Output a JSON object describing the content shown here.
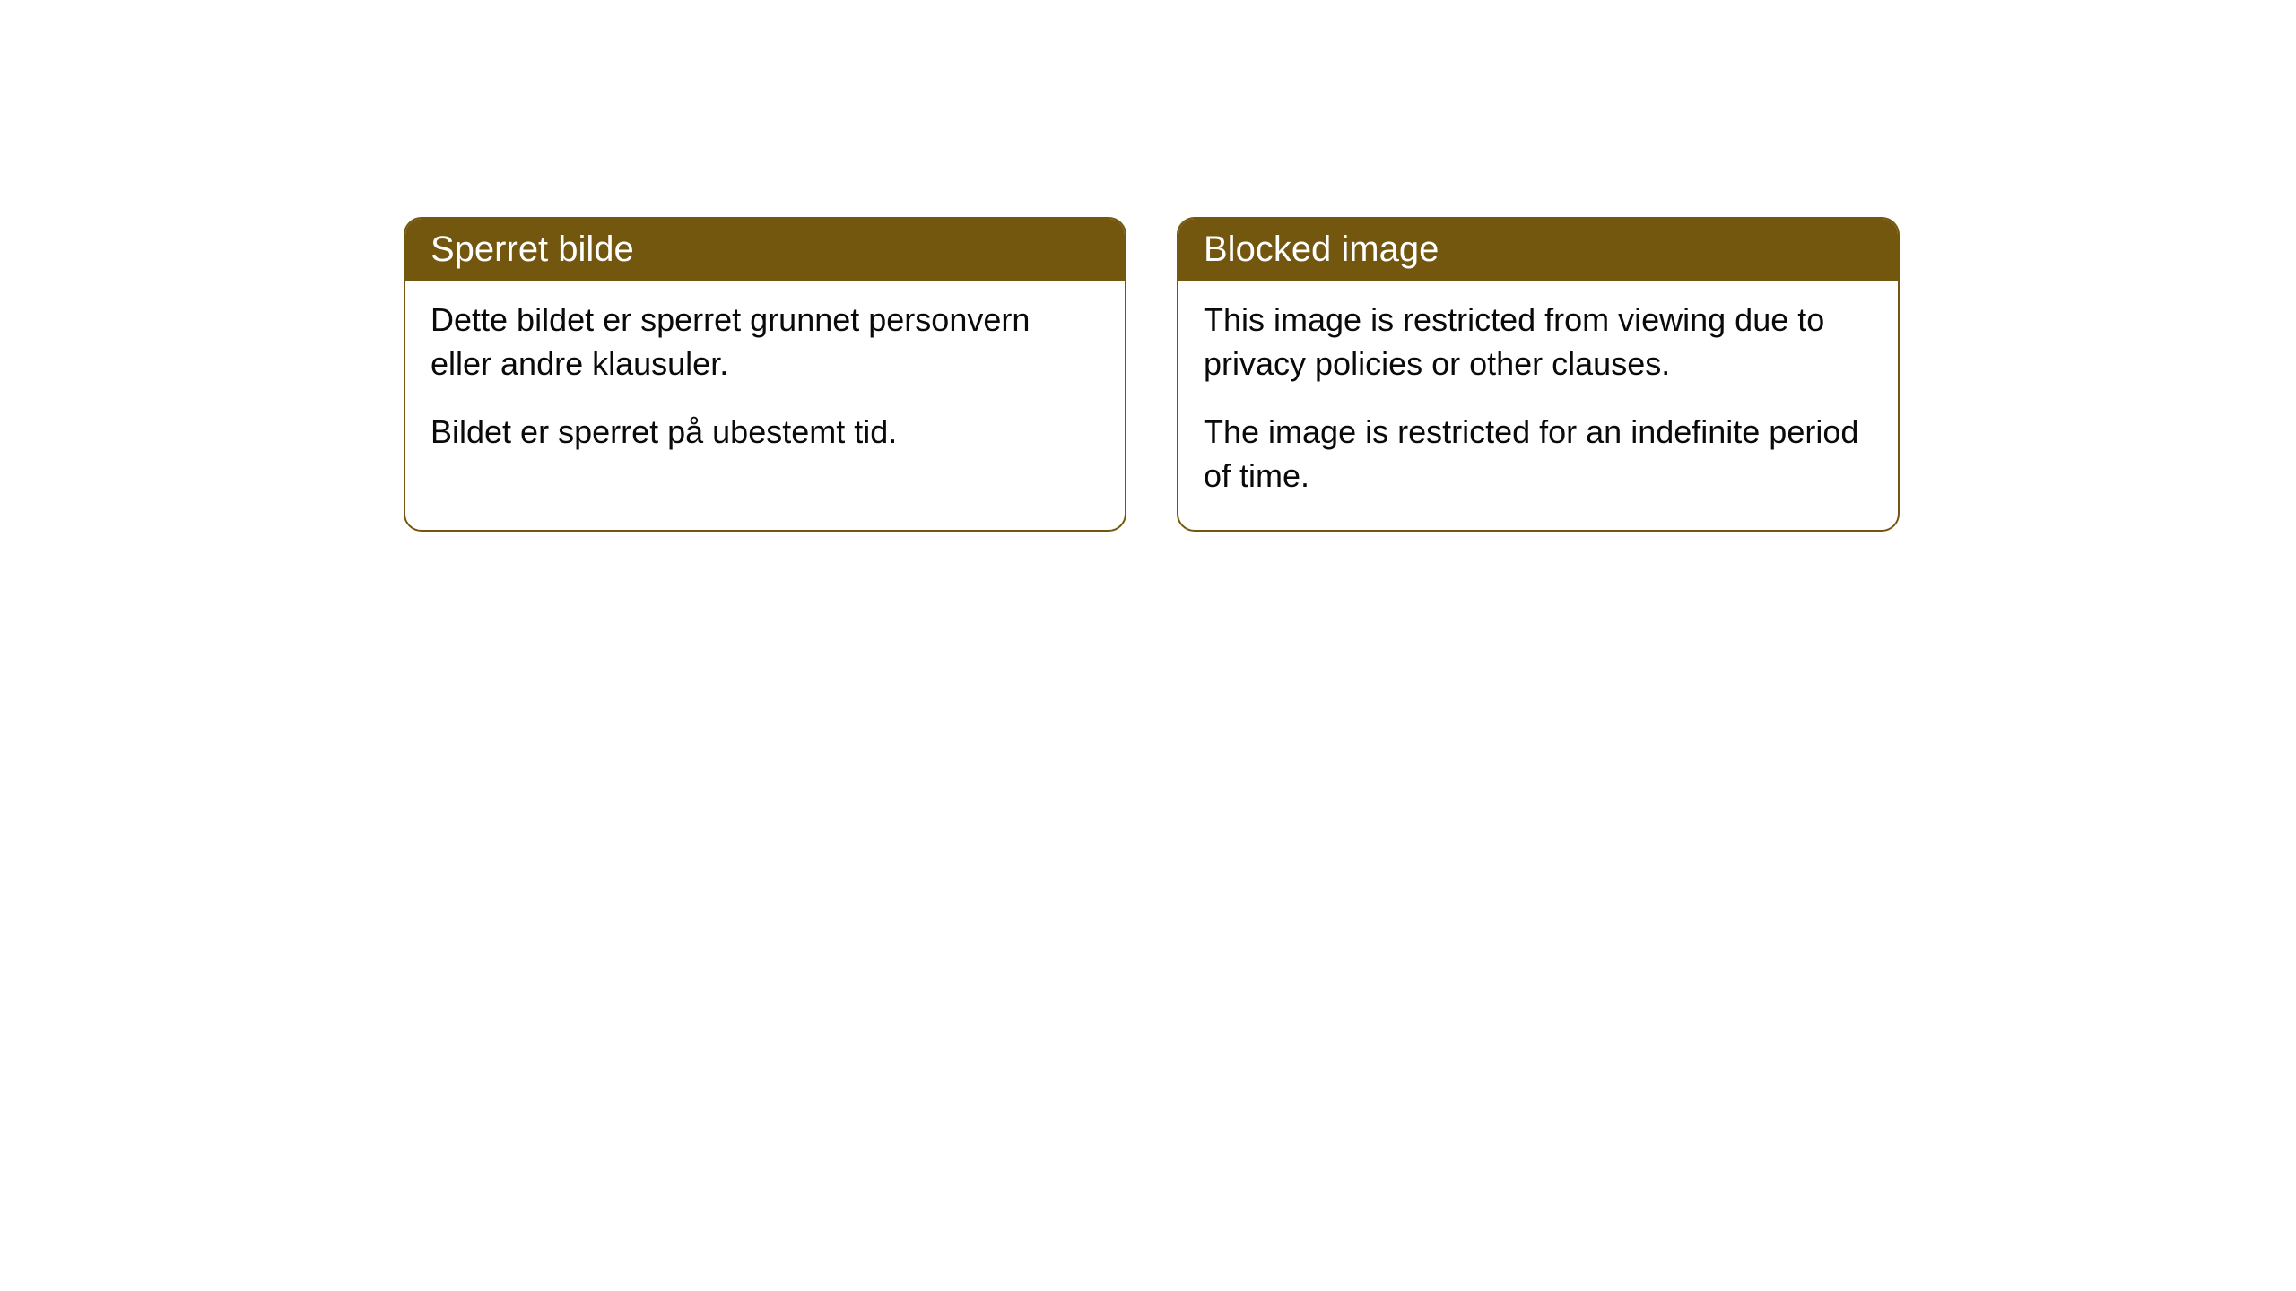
{
  "cards": [
    {
      "title": "Sperret bilde",
      "paragraph1": "Dette bildet er sperret grunnet personvern eller andre klausuler.",
      "paragraph2": "Bildet er sperret på ubestemt tid."
    },
    {
      "title": "Blocked image",
      "paragraph1": "This image is restricted from viewing due to privacy policies or other clauses.",
      "paragraph2": "The image is restricted for an indefinite period of time."
    }
  ],
  "styling": {
    "header_background": "#73570f",
    "header_text_color": "#ffffff",
    "border_color": "#73570f",
    "body_background": "#ffffff",
    "body_text_color": "#0a0a0a",
    "border_radius": 20,
    "title_fontsize": 40,
    "body_fontsize": 36
  }
}
